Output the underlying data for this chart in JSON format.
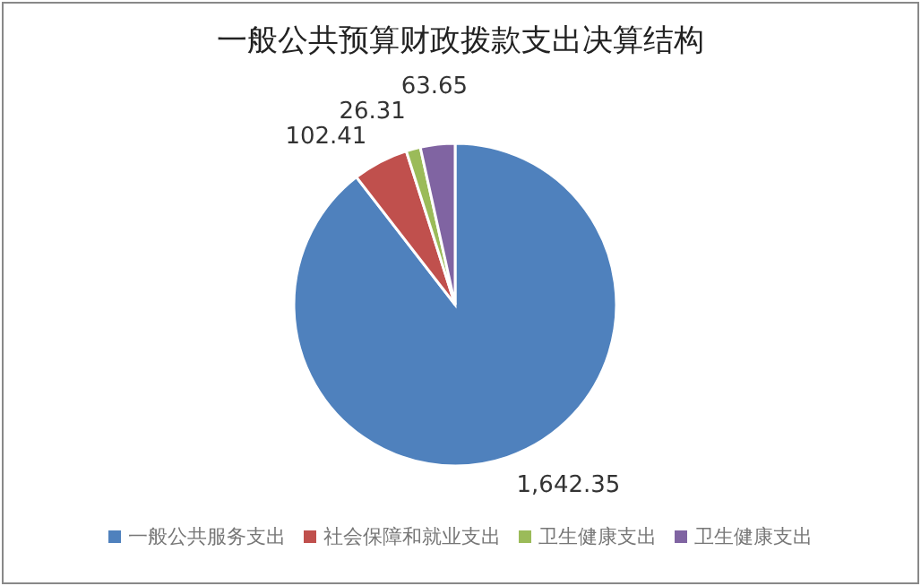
{
  "chart_data": {
    "type": "pie",
    "title": "一般公共预算财政拨款支出决算结构",
    "categories": [
      "一般公共服务支出",
      "社会保障和就业支出",
      "卫生健康支出",
      "卫生健康支出"
    ],
    "values": [
      1642.35,
      102.41,
      26.31,
      63.65
    ],
    "colors": [
      "#4f81bd",
      "#c0504d",
      "#9bbb59",
      "#8064a2"
    ],
    "value_labels": [
      "1,642.35",
      "102.41",
      "26.31",
      "63.65"
    ],
    "legend": "bottom"
  }
}
